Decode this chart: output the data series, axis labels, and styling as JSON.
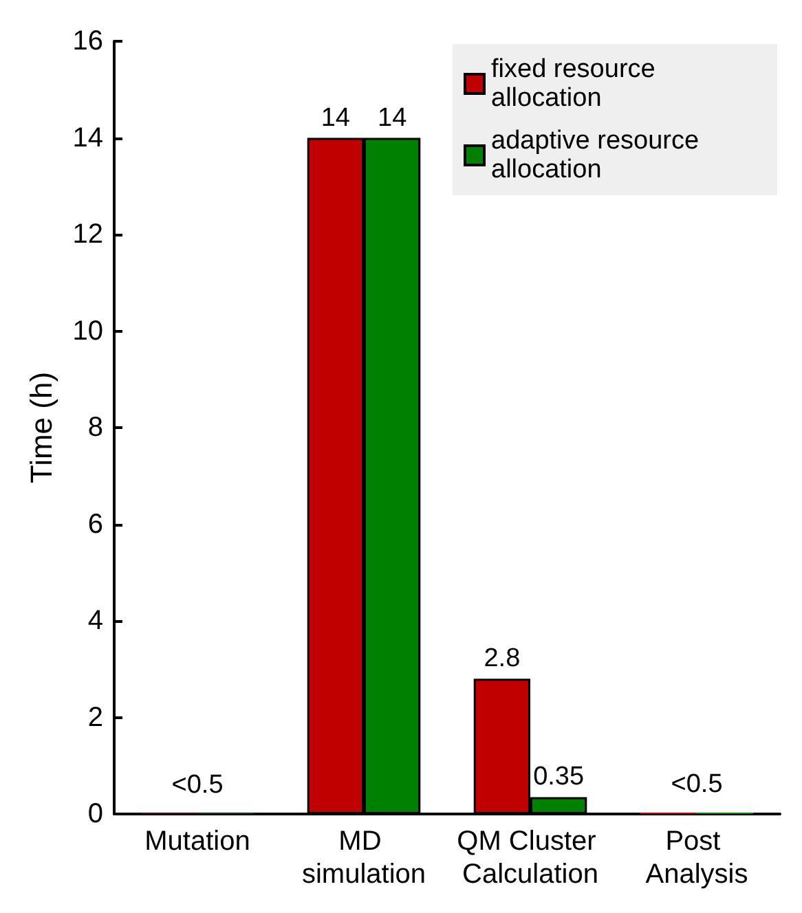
{
  "chart_data": {
    "type": "bar",
    "ylabel": "Time (h)",
    "categories": [
      "Mutation",
      "MD simulation",
      "QM Cluster Calculation",
      "Post Analysis"
    ],
    "series": [
      {
        "name": "fixed resource allocation",
        "color": "#c00000",
        "values": [
          0.01,
          14,
          2.8,
          0.03
        ],
        "value_labels": [
          "<0.5",
          "14",
          "2.8",
          null
        ]
      },
      {
        "name": "adaptive resource allocation",
        "color": "#008000",
        "values": [
          0.01,
          14,
          0.35,
          0.03
        ],
        "value_labels": [
          null,
          "14",
          "0.35",
          "<0.5"
        ]
      }
    ],
    "ylim": [
      0,
      16
    ],
    "yticks": [
      0,
      2,
      4,
      6,
      8,
      10,
      12,
      14,
      16
    ],
    "grid": false,
    "legend": "top right"
  }
}
